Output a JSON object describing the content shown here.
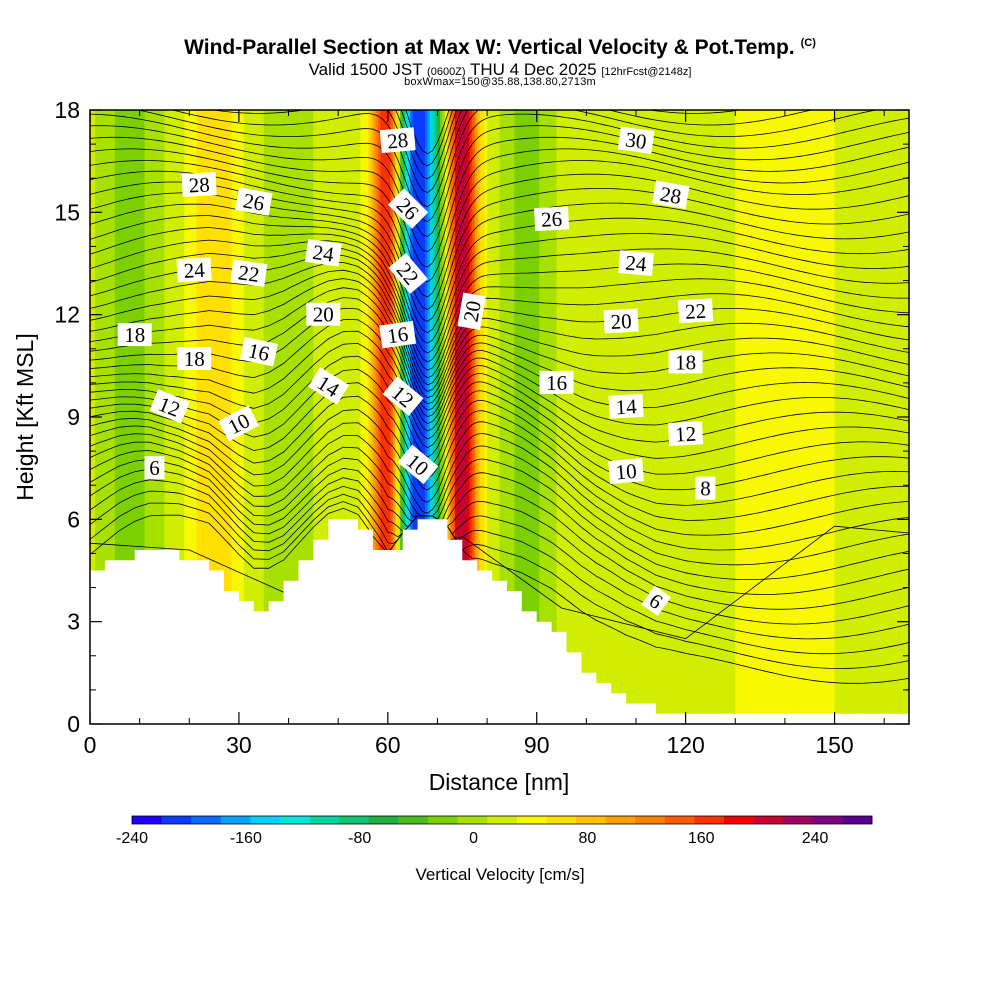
{
  "header": {
    "title": "Wind-Parallel Section at Max W: Vertical Velocity & Pot.Temp.",
    "title_mark": "(C)",
    "subtitle_valid": "Valid 1500 JST",
    "subtitle_z": "(0600Z)",
    "subtitle_date": "THU 4 Dec 2025",
    "subtitle_fcst": "[12hrFcst@2148z]",
    "subtitle_box": "boxWmax=150@35.88,138.80,2713m"
  },
  "chart_data": {
    "type": "heatmap",
    "title": "Wind-Parallel Section at Max W: Vertical Velocity & Pot.Temp.",
    "xlabel": "Distance [nm]",
    "ylabel": "Height [Kft MSL]",
    "xlim": [
      0,
      165
    ],
    "ylim": [
      0,
      18
    ],
    "x_ticks": [
      0,
      30,
      60,
      90,
      120,
      150
    ],
    "y_ticks": [
      0,
      3,
      6,
      9,
      12,
      15,
      18
    ],
    "colorbar": {
      "label": "Vertical Velocity [cm/s]",
      "range": [
        -240,
        280
      ],
      "step": 20,
      "tick_values": [
        -240,
        -160,
        -80,
        0,
        80,
        160,
        240
      ],
      "tick_labels": [
        "-240",
        "-160",
        "-80",
        "0",
        "80",
        "160",
        "240"
      ],
      "colors": [
        "#1f00ff",
        "#0a3cff",
        "#0a6cff",
        "#08a2ff",
        "#00d2ff",
        "#00e8d8",
        "#00d6a0",
        "#10c470",
        "#20b040",
        "#4cbc20",
        "#7cd000",
        "#a8e000",
        "#d2ee00",
        "#f8f800",
        "#ffe000",
        "#ffc000",
        "#ffa000",
        "#ff8000",
        "#ff5c00",
        "#ff3000",
        "#ee0000",
        "#c80032",
        "#a00060",
        "#800080",
        "#5a0090",
        "#5a0090"
      ]
    },
    "terrain_profile": {
      "distance_nm": [
        0,
        3,
        6,
        9,
        12,
        18,
        24,
        27,
        30,
        33,
        36,
        39,
        42,
        45,
        48,
        51,
        54,
        57,
        60,
        63,
        66,
        69,
        72,
        75,
        78,
        81,
        84,
        87,
        90,
        93,
        96,
        99,
        102,
        105,
        108,
        111,
        114,
        117,
        120,
        126,
        132,
        138,
        144,
        150,
        156,
        162,
        165
      ],
      "height_kft": [
        4.2,
        4.5,
        4.8,
        5.0,
        5.1,
        5.0,
        4.7,
        4.2,
        3.7,
        3.3,
        3.4,
        3.8,
        4.5,
        5.2,
        5.8,
        6.1,
        6.0,
        5.4,
        4.9,
        5.5,
        6.0,
        6.0,
        5.7,
        5.0,
        4.6,
        4.2,
        3.9,
        3.6,
        3.2,
        2.8,
        2.3,
        1.8,
        1.4,
        1.1,
        0.8,
        0.6,
        0.4,
        0.35,
        0.3,
        0.3,
        0.3,
        0.3,
        0.3,
        0.3,
        0.3,
        0.3,
        0.3
      ]
    },
    "velocity_features": [
      {
        "center_nm": 66,
        "width_nm": 4.5,
        "w_cms": -230
      },
      {
        "center_nm": 60,
        "width_nm": 3.2,
        "w_cms": 180
      },
      {
        "center_nm": 75,
        "width_nm": 3.2,
        "w_cms": 190
      },
      {
        "center_nm": 25,
        "width_nm": 5.0,
        "w_cms": 50
      },
      {
        "center_nm": 8,
        "width_nm": 6.0,
        "w_cms": -40
      },
      {
        "center_nm": 40,
        "width_nm": 5.0,
        "w_cms": -30
      },
      {
        "center_nm": 88,
        "width_nm": 5.0,
        "w_cms": -40
      },
      {
        "center_nm": 140,
        "width_nm": 12.0,
        "w_cms": 20
      }
    ],
    "isentrope_labels": [
      {
        "value": "28",
        "x_nm": 62,
        "y_kft": 17.1,
        "angle_deg": -5
      },
      {
        "value": "30",
        "x_nm": 110,
        "y_kft": 17.1,
        "angle_deg": 8
      },
      {
        "value": "28",
        "x_nm": 22,
        "y_kft": 15.8,
        "angle_deg": -3
      },
      {
        "value": "26",
        "x_nm": 33,
        "y_kft": 15.3,
        "angle_deg": 10
      },
      {
        "value": "26",
        "x_nm": 64,
        "y_kft": 15.1,
        "angle_deg": 45
      },
      {
        "value": "26",
        "x_nm": 93,
        "y_kft": 14.8,
        "angle_deg": -3
      },
      {
        "value": "28",
        "x_nm": 117,
        "y_kft": 15.5,
        "angle_deg": 10
      },
      {
        "value": "24",
        "x_nm": 47,
        "y_kft": 13.8,
        "angle_deg": 8
      },
      {
        "value": "24",
        "x_nm": 21,
        "y_kft": 13.3,
        "angle_deg": -3
      },
      {
        "value": "22",
        "x_nm": 32,
        "y_kft": 13.2,
        "angle_deg": 8
      },
      {
        "value": "22",
        "x_nm": 64,
        "y_kft": 13.2,
        "angle_deg": 50
      },
      {
        "value": "24",
        "x_nm": 110,
        "y_kft": 13.5,
        "angle_deg": 5
      },
      {
        "value": "20",
        "x_nm": 77,
        "y_kft": 12.1,
        "angle_deg": -80
      },
      {
        "value": "20",
        "x_nm": 47,
        "y_kft": 12.0,
        "angle_deg": 0
      },
      {
        "value": "22",
        "x_nm": 122,
        "y_kft": 12.1,
        "angle_deg": -3
      },
      {
        "value": "20",
        "x_nm": 107,
        "y_kft": 11.8,
        "angle_deg": -3
      },
      {
        "value": "18",
        "x_nm": 9,
        "y_kft": 11.4,
        "angle_deg": 0
      },
      {
        "value": "16",
        "x_nm": 62,
        "y_kft": 11.4,
        "angle_deg": -8
      },
      {
        "value": "16",
        "x_nm": 34,
        "y_kft": 10.9,
        "angle_deg": 12
      },
      {
        "value": "18",
        "x_nm": 21,
        "y_kft": 10.7,
        "angle_deg": 0
      },
      {
        "value": "18",
        "x_nm": 120,
        "y_kft": 10.6,
        "angle_deg": 0
      },
      {
        "value": "16",
        "x_nm": 94,
        "y_kft": 10.0,
        "angle_deg": 0
      },
      {
        "value": "14",
        "x_nm": 48,
        "y_kft": 9.9,
        "angle_deg": 32
      },
      {
        "value": "12",
        "x_nm": 63,
        "y_kft": 9.6,
        "angle_deg": 40
      },
      {
        "value": "14",
        "x_nm": 108,
        "y_kft": 9.3,
        "angle_deg": -3
      },
      {
        "value": "12",
        "x_nm": 16,
        "y_kft": 9.3,
        "angle_deg": 22
      },
      {
        "value": "10",
        "x_nm": 30,
        "y_kft": 8.8,
        "angle_deg": -28
      },
      {
        "value": "12",
        "x_nm": 120,
        "y_kft": 8.5,
        "angle_deg": -3
      },
      {
        "value": "10",
        "x_nm": 66,
        "y_kft": 7.6,
        "angle_deg": 40
      },
      {
        "value": "6",
        "x_nm": 13,
        "y_kft": 7.5,
        "angle_deg": 0
      },
      {
        "value": "10",
        "x_nm": 108,
        "y_kft": 7.4,
        "angle_deg": -5
      },
      {
        "value": "8",
        "x_nm": 124,
        "y_kft": 6.9,
        "angle_deg": 0
      },
      {
        "value": "6",
        "x_nm": 114,
        "y_kft": 3.6,
        "angle_deg": 35
      }
    ]
  }
}
